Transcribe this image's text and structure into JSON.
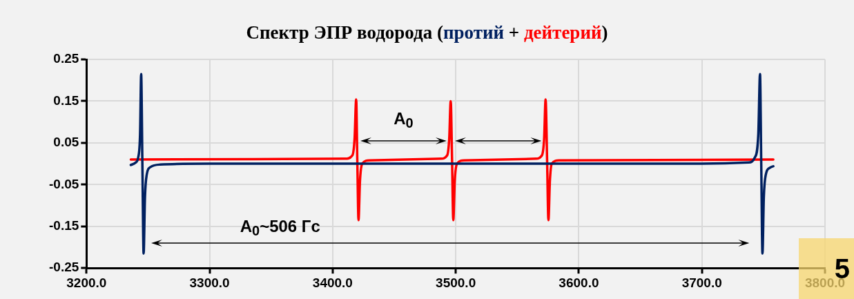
{
  "chart_data": {
    "type": "line",
    "title": "Спектр ЭПР водорода (",
    "xlim": [
      3200,
      3800
    ],
    "xticks": [
      {
        "value": 3200,
        "label": "3200.0"
      },
      {
        "value": 3300,
        "label": "3300.0"
      },
      {
        "value": 3400,
        "label": "3400.0"
      },
      {
        "value": 3500,
        "label": "3500.0"
      },
      {
        "value": 3600,
        "label": "3600.0"
      },
      {
        "value": 3700,
        "label": "3700.0"
      },
      {
        "value": 3800,
        "label": "3800.0"
      }
    ],
    "ylim": [
      -0.25,
      0.25
    ],
    "yticks": [
      -0.25,
      -0.15,
      -0.05,
      0.05,
      0.15,
      0.25
    ],
    "grid": true,
    "legend": false,
    "marker": "none",
    "line_style": "solid",
    "series": [
      {
        "name": "протий",
        "color": "#002060",
        "x": [
          3236,
          3240,
          3242,
          3243.5,
          3244.4,
          3245.4,
          3246.4,
          3247.5,
          3249,
          3252,
          3260,
          3300,
          3700,
          3738,
          3743,
          3745.8,
          3747.2,
          3748.2,
          3749.2,
          3750.3,
          3752,
          3755,
          3758
        ],
        "values": [
          -0.003,
          0.003,
          0.015,
          0.07,
          0.215,
          0,
          -0.215,
          -0.08,
          -0.025,
          -0.008,
          -0.002,
          0,
          0,
          0.003,
          0.015,
          0.07,
          0.215,
          0,
          -0.215,
          -0.08,
          -0.025,
          -0.01,
          -0.006
        ]
      },
      {
        "name": "дейтерий",
        "color": "#ff0000",
        "x": [
          3236,
          3410,
          3416,
          3417.8,
          3419.1,
          3420,
          3421,
          3422.2,
          3424,
          3430,
          3488,
          3493,
          3494.7,
          3495.9,
          3497,
          3498,
          3499.2,
          3501,
          3507,
          3565,
          3570,
          3571.8,
          3573,
          3574.2,
          3575.3,
          3576.5,
          3578,
          3584,
          3758
        ],
        "values": [
          0.01,
          0.012,
          0.02,
          0.06,
          0.154,
          0.01,
          -0.135,
          -0.04,
          0,
          0.008,
          0.012,
          0.02,
          0.06,
          0.15,
          0.01,
          -0.135,
          -0.04,
          0,
          0.008,
          0.012,
          0.02,
          0.06,
          0.154,
          0.01,
          -0.135,
          -0.04,
          0,
          0.008,
          0.01
        ]
      }
    ],
    "annotations": [
      "A$_{0}$",
      "A$_{0}$~506 Гс",
      "5",
      "+",
      ")"
    ]
  }
}
